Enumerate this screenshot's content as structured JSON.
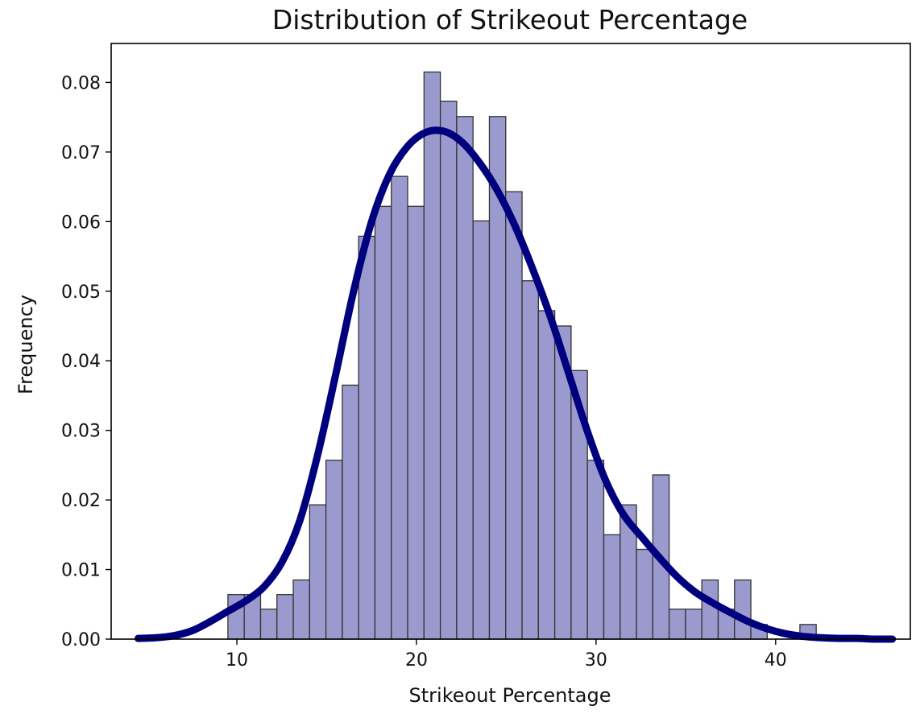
{
  "chart_data": {
    "type": "bar",
    "title": "Distribution of Strikeout Percentage",
    "xlabel": "Strikeout Percentage",
    "ylabel": "Frequency",
    "xlim": [
      3,
      47.5
    ],
    "ylim": [
      0,
      0.0856
    ],
    "xticks": [
      10,
      20,
      30,
      40
    ],
    "xtick_labels": [
      "10",
      "20",
      "30",
      "40"
    ],
    "yticks": [
      0.0,
      0.01,
      0.02,
      0.03,
      0.04,
      0.05,
      0.06,
      0.07,
      0.08
    ],
    "ytick_labels": [
      "0.00",
      "0.01",
      "0.02",
      "0.03",
      "0.04",
      "0.05",
      "0.06",
      "0.07",
      "0.08"
    ],
    "grid": false,
    "bin_edges": [
      9.5,
      10.41,
      11.32,
      12.23,
      13.14,
      14.05,
      14.96,
      15.87,
      16.78,
      17.69,
      18.6,
      19.51,
      20.42,
      21.33,
      22.24,
      23.15,
      24.06,
      24.97,
      25.88,
      26.79,
      27.7,
      28.61,
      29.52,
      30.43,
      31.34,
      32.25,
      33.16,
      34.07,
      34.98,
      35.89,
      36.8,
      37.71,
      38.62,
      39.53,
      40.44,
      41.35,
      42.26
    ],
    "values": [
      0.0064,
      0.0064,
      0.0043,
      0.0064,
      0.0085,
      0.0193,
      0.0257,
      0.0365,
      0.0579,
      0.0622,
      0.0665,
      0.0622,
      0.0815,
      0.0773,
      0.0751,
      0.0601,
      0.0751,
      0.0643,
      0.0515,
      0.0472,
      0.045,
      0.0386,
      0.0257,
      0.015,
      0.0193,
      0.0129,
      0.0236,
      0.0043,
      0.0043,
      0.0085,
      0.0043,
      0.0085,
      0.0021,
      0.0,
      0.0,
      0.0021
    ],
    "kde": {
      "x": [
        4.5,
        5.5,
        6.5,
        7.5,
        8.5,
        9.5,
        10.5,
        11.5,
        12.5,
        13.5,
        14.5,
        15.5,
        16.5,
        17.5,
        18.5,
        19.5,
        20.5,
        21.5,
        22.5,
        23.5,
        24.5,
        25.5,
        26.5,
        27.5,
        28.5,
        29.5,
        30.5,
        31.5,
        32.5,
        33.5,
        34.5,
        35.5,
        36.5,
        37.5,
        38.5,
        39.5,
        40.5,
        41.5,
        42.5,
        43.5,
        44.5,
        45.5,
        46.5
      ],
      "y": [
        0.0001,
        0.0002,
        0.0005,
        0.0012,
        0.0025,
        0.004,
        0.0055,
        0.0075,
        0.011,
        0.017,
        0.0265,
        0.038,
        0.05,
        0.06,
        0.0668,
        0.0708,
        0.0728,
        0.073,
        0.0715,
        0.0685,
        0.0645,
        0.0593,
        0.053,
        0.046,
        0.038,
        0.03,
        0.023,
        0.018,
        0.0148,
        0.0118,
        0.009,
        0.0068,
        0.0052,
        0.0038,
        0.0025,
        0.0015,
        0.0008,
        0.0004,
        0.0002,
        0.0001,
        0.0001,
        0.0,
        0.0
      ]
    },
    "colors": {
      "bar_fill": "#9a9ace",
      "bar_edge": "#333333",
      "kde_line": "#00007f"
    }
  }
}
